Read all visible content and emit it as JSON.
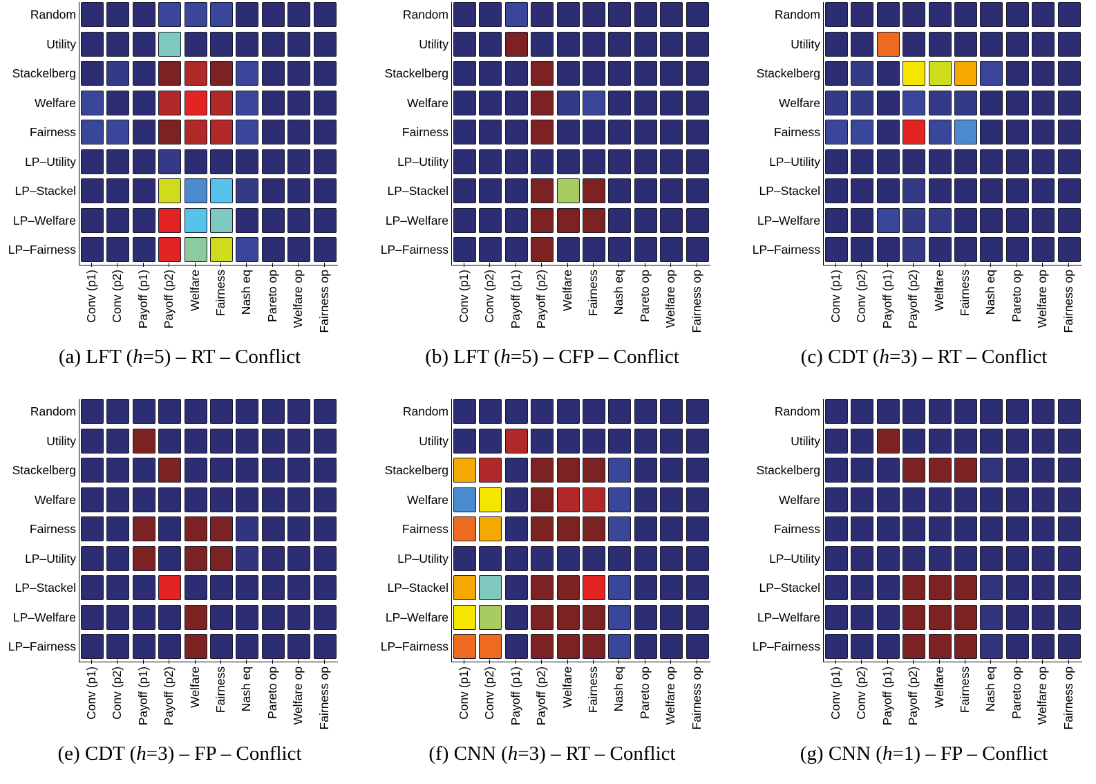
{
  "chart_data": [
    {
      "type": "heatmap",
      "caption": {
        "prefix": "(a) LFT (",
        "var": "h",
        "suffix": "=5) – RT – Conflict"
      },
      "values": [
        [
          0,
          0,
          0,
          0.1,
          0.1,
          0.1,
          0,
          0,
          0,
          0
        ],
        [
          0,
          0,
          0,
          0.4,
          0,
          0,
          0,
          0,
          0,
          0
        ],
        [
          0,
          0.05,
          0,
          1,
          0.94,
          1,
          0.1,
          0,
          0,
          0
        ],
        [
          0.1,
          0,
          0,
          0.94,
          0.88,
          0.94,
          0.1,
          0,
          0,
          0
        ],
        [
          0.1,
          0.1,
          0,
          1,
          0.94,
          0.94,
          0.1,
          0,
          0,
          0
        ],
        [
          0,
          0,
          0,
          0.05,
          0,
          0,
          0,
          0,
          0,
          0
        ],
        [
          0,
          0,
          0,
          0.6,
          0.2,
          0.3,
          0.05,
          0,
          0,
          0
        ],
        [
          0,
          0,
          0,
          0.88,
          0.3,
          0.4,
          0,
          0,
          0,
          0
        ],
        [
          0,
          0,
          0,
          0.88,
          0.45,
          0.6,
          0.1,
          0,
          0,
          0
        ]
      ]
    },
    {
      "type": "heatmap",
      "caption": {
        "prefix": "(b) LFT (",
        "var": "h",
        "suffix": "=5) – CFP – Conflict"
      },
      "values": [
        [
          0,
          0,
          0.1,
          0,
          0,
          0,
          0,
          0,
          0,
          0
        ],
        [
          0,
          0,
          1,
          0,
          0,
          0,
          0,
          0,
          0,
          0
        ],
        [
          0,
          0,
          0,
          1,
          0,
          0,
          0,
          0,
          0,
          0
        ],
        [
          0,
          0,
          0,
          1,
          0.05,
          0.1,
          0,
          0,
          0,
          0
        ],
        [
          0,
          0,
          0,
          1,
          0,
          0,
          0,
          0,
          0,
          0
        ],
        [
          0,
          0,
          0,
          0,
          0,
          0,
          0,
          0,
          0,
          0
        ],
        [
          0,
          0,
          0,
          1,
          0.5,
          1,
          0,
          0,
          0,
          0
        ],
        [
          0,
          0,
          0,
          1,
          1,
          1,
          0,
          0,
          0,
          0
        ],
        [
          0,
          0,
          0,
          1,
          0,
          0,
          0,
          0,
          0,
          0
        ]
      ]
    },
    {
      "type": "heatmap",
      "caption": {
        "prefix": "(c) CDT (",
        "var": "h",
        "suffix": "=3) – RT – Conflict"
      },
      "values": [
        [
          0,
          0,
          0,
          0,
          0,
          0,
          0,
          0,
          0,
          0
        ],
        [
          0,
          0,
          0.8,
          0,
          0,
          0,
          0,
          0,
          0,
          0
        ],
        [
          0,
          0.05,
          0,
          0.65,
          0.6,
          0.75,
          0.1,
          0,
          0,
          0
        ],
        [
          0.05,
          0.05,
          0,
          0.1,
          0.05,
          0.05,
          0,
          0,
          0,
          0
        ],
        [
          0.1,
          0.1,
          0,
          0.88,
          0.1,
          0.2,
          0,
          0,
          0,
          0
        ],
        [
          0,
          0,
          0,
          0,
          0,
          0,
          0,
          0,
          0,
          0
        ],
        [
          0,
          0,
          0,
          0.05,
          0,
          0,
          0,
          0,
          0,
          0
        ],
        [
          0,
          0,
          0.1,
          0.05,
          0.05,
          0,
          0,
          0,
          0,
          0
        ],
        [
          0,
          0,
          0,
          0.05,
          0,
          0,
          0,
          0,
          0,
          0
        ]
      ]
    },
    {
      "type": "heatmap",
      "caption": {
        "prefix": "(e) CDT (",
        "var": "h",
        "suffix": "=3) – FP – Conflict"
      },
      "values": [
        [
          0,
          0,
          0,
          0,
          0,
          0,
          0,
          0,
          0,
          0
        ],
        [
          0,
          0,
          1,
          0,
          0,
          0,
          0,
          0,
          0,
          0
        ],
        [
          0,
          0,
          0,
          1,
          0,
          0,
          0,
          0,
          0,
          0
        ],
        [
          0,
          0,
          0,
          0,
          0,
          0,
          0,
          0,
          0,
          0
        ],
        [
          0,
          0,
          1,
          0,
          1,
          1,
          0.03,
          0,
          0,
          0
        ],
        [
          0,
          0,
          1,
          0,
          1,
          1,
          0.03,
          0,
          0,
          0
        ],
        [
          0,
          0,
          0,
          0.88,
          0,
          0,
          0,
          0,
          0,
          0
        ],
        [
          0,
          0,
          0,
          0,
          1,
          0,
          0,
          0,
          0,
          0
        ],
        [
          0,
          0,
          0,
          0,
          1,
          0,
          0,
          0,
          0,
          0
        ]
      ]
    },
    {
      "type": "heatmap",
      "caption": {
        "prefix": "(f) CNN (",
        "var": "h",
        "suffix": "=3) – RT – Conflict"
      },
      "values": [
        [
          0,
          0,
          0,
          0,
          0,
          0,
          0,
          0,
          0,
          0
        ],
        [
          0,
          0,
          0.94,
          0,
          0,
          0,
          0,
          0,
          0,
          0
        ],
        [
          0.75,
          0.94,
          0,
          1,
          1,
          1,
          0.1,
          0,
          0,
          0
        ],
        [
          0.2,
          0.65,
          0,
          1,
          0.94,
          0.94,
          0.1,
          0,
          0,
          0
        ],
        [
          0.8,
          0.75,
          0,
          1,
          1,
          1,
          0.1,
          0,
          0,
          0
        ],
        [
          0,
          0,
          0,
          0,
          0,
          0,
          0,
          0,
          0,
          0
        ],
        [
          0.75,
          0.4,
          0,
          1,
          1,
          0.88,
          0.1,
          0,
          0,
          0
        ],
        [
          0.65,
          0.5,
          0,
          1,
          1,
          1,
          0.1,
          0,
          0,
          0
        ],
        [
          0.8,
          0.8,
          0,
          1,
          1,
          1,
          0.1,
          0,
          0,
          0
        ]
      ]
    },
    {
      "type": "heatmap",
      "caption": {
        "prefix": "(g) CNN (",
        "var": "h",
        "suffix": "=1) – FP – Conflict"
      },
      "values": [
        [
          0,
          0,
          0,
          0,
          0,
          0,
          0,
          0,
          0,
          0
        ],
        [
          0,
          0,
          1,
          0,
          0,
          0,
          0,
          0,
          0,
          0
        ],
        [
          0,
          0,
          0,
          1,
          1,
          1,
          0.03,
          0,
          0,
          0
        ],
        [
          0,
          0,
          0,
          0,
          0,
          0,
          0,
          0,
          0,
          0
        ],
        [
          0,
          0,
          0,
          0,
          0,
          0,
          0,
          0,
          0,
          0
        ],
        [
          0,
          0,
          0,
          0,
          0,
          0,
          0,
          0,
          0,
          0
        ],
        [
          0,
          0,
          0,
          1,
          1,
          1,
          0.03,
          0,
          0,
          0
        ],
        [
          0,
          0,
          0,
          1,
          1,
          1,
          0.03,
          0,
          0,
          0
        ],
        [
          0,
          0,
          0,
          1,
          1,
          1,
          0.03,
          0,
          0,
          0
        ]
      ]
    }
  ],
  "rows": [
    "Random",
    "Utility",
    "Stackelberg",
    "Welfare",
    "Fairness",
    "LP–Utility",
    "LP–Stackel",
    "LP–Welfare",
    "LP–Fairness"
  ],
  "cols": [
    "Conv (p1)",
    "Conv (p2)",
    "Payoff (p1)",
    "Payoff (p2)",
    "Welfare",
    "Fairness",
    "Nash eq",
    "Pareto op",
    "Welfare op",
    "Fairness op"
  ],
  "colormap": "jet",
  "colormap_stops": [
    [
      0,
      "#2d2d73"
    ],
    [
      0.1,
      "#3a4699"
    ],
    [
      0.2,
      "#4a8bd0"
    ],
    [
      0.3,
      "#55c3ea"
    ],
    [
      0.4,
      "#80c9bf"
    ],
    [
      0.45,
      "#8ccba0"
    ],
    [
      0.5,
      "#a8cc60"
    ],
    [
      0.6,
      "#cfdc1c"
    ],
    [
      0.65,
      "#f5e600"
    ],
    [
      0.75,
      "#f5a800"
    ],
    [
      0.8,
      "#ee6a20"
    ],
    [
      0.88,
      "#e42323"
    ],
    [
      0.94,
      "#b02828"
    ],
    [
      1,
      "#7c2222"
    ]
  ]
}
